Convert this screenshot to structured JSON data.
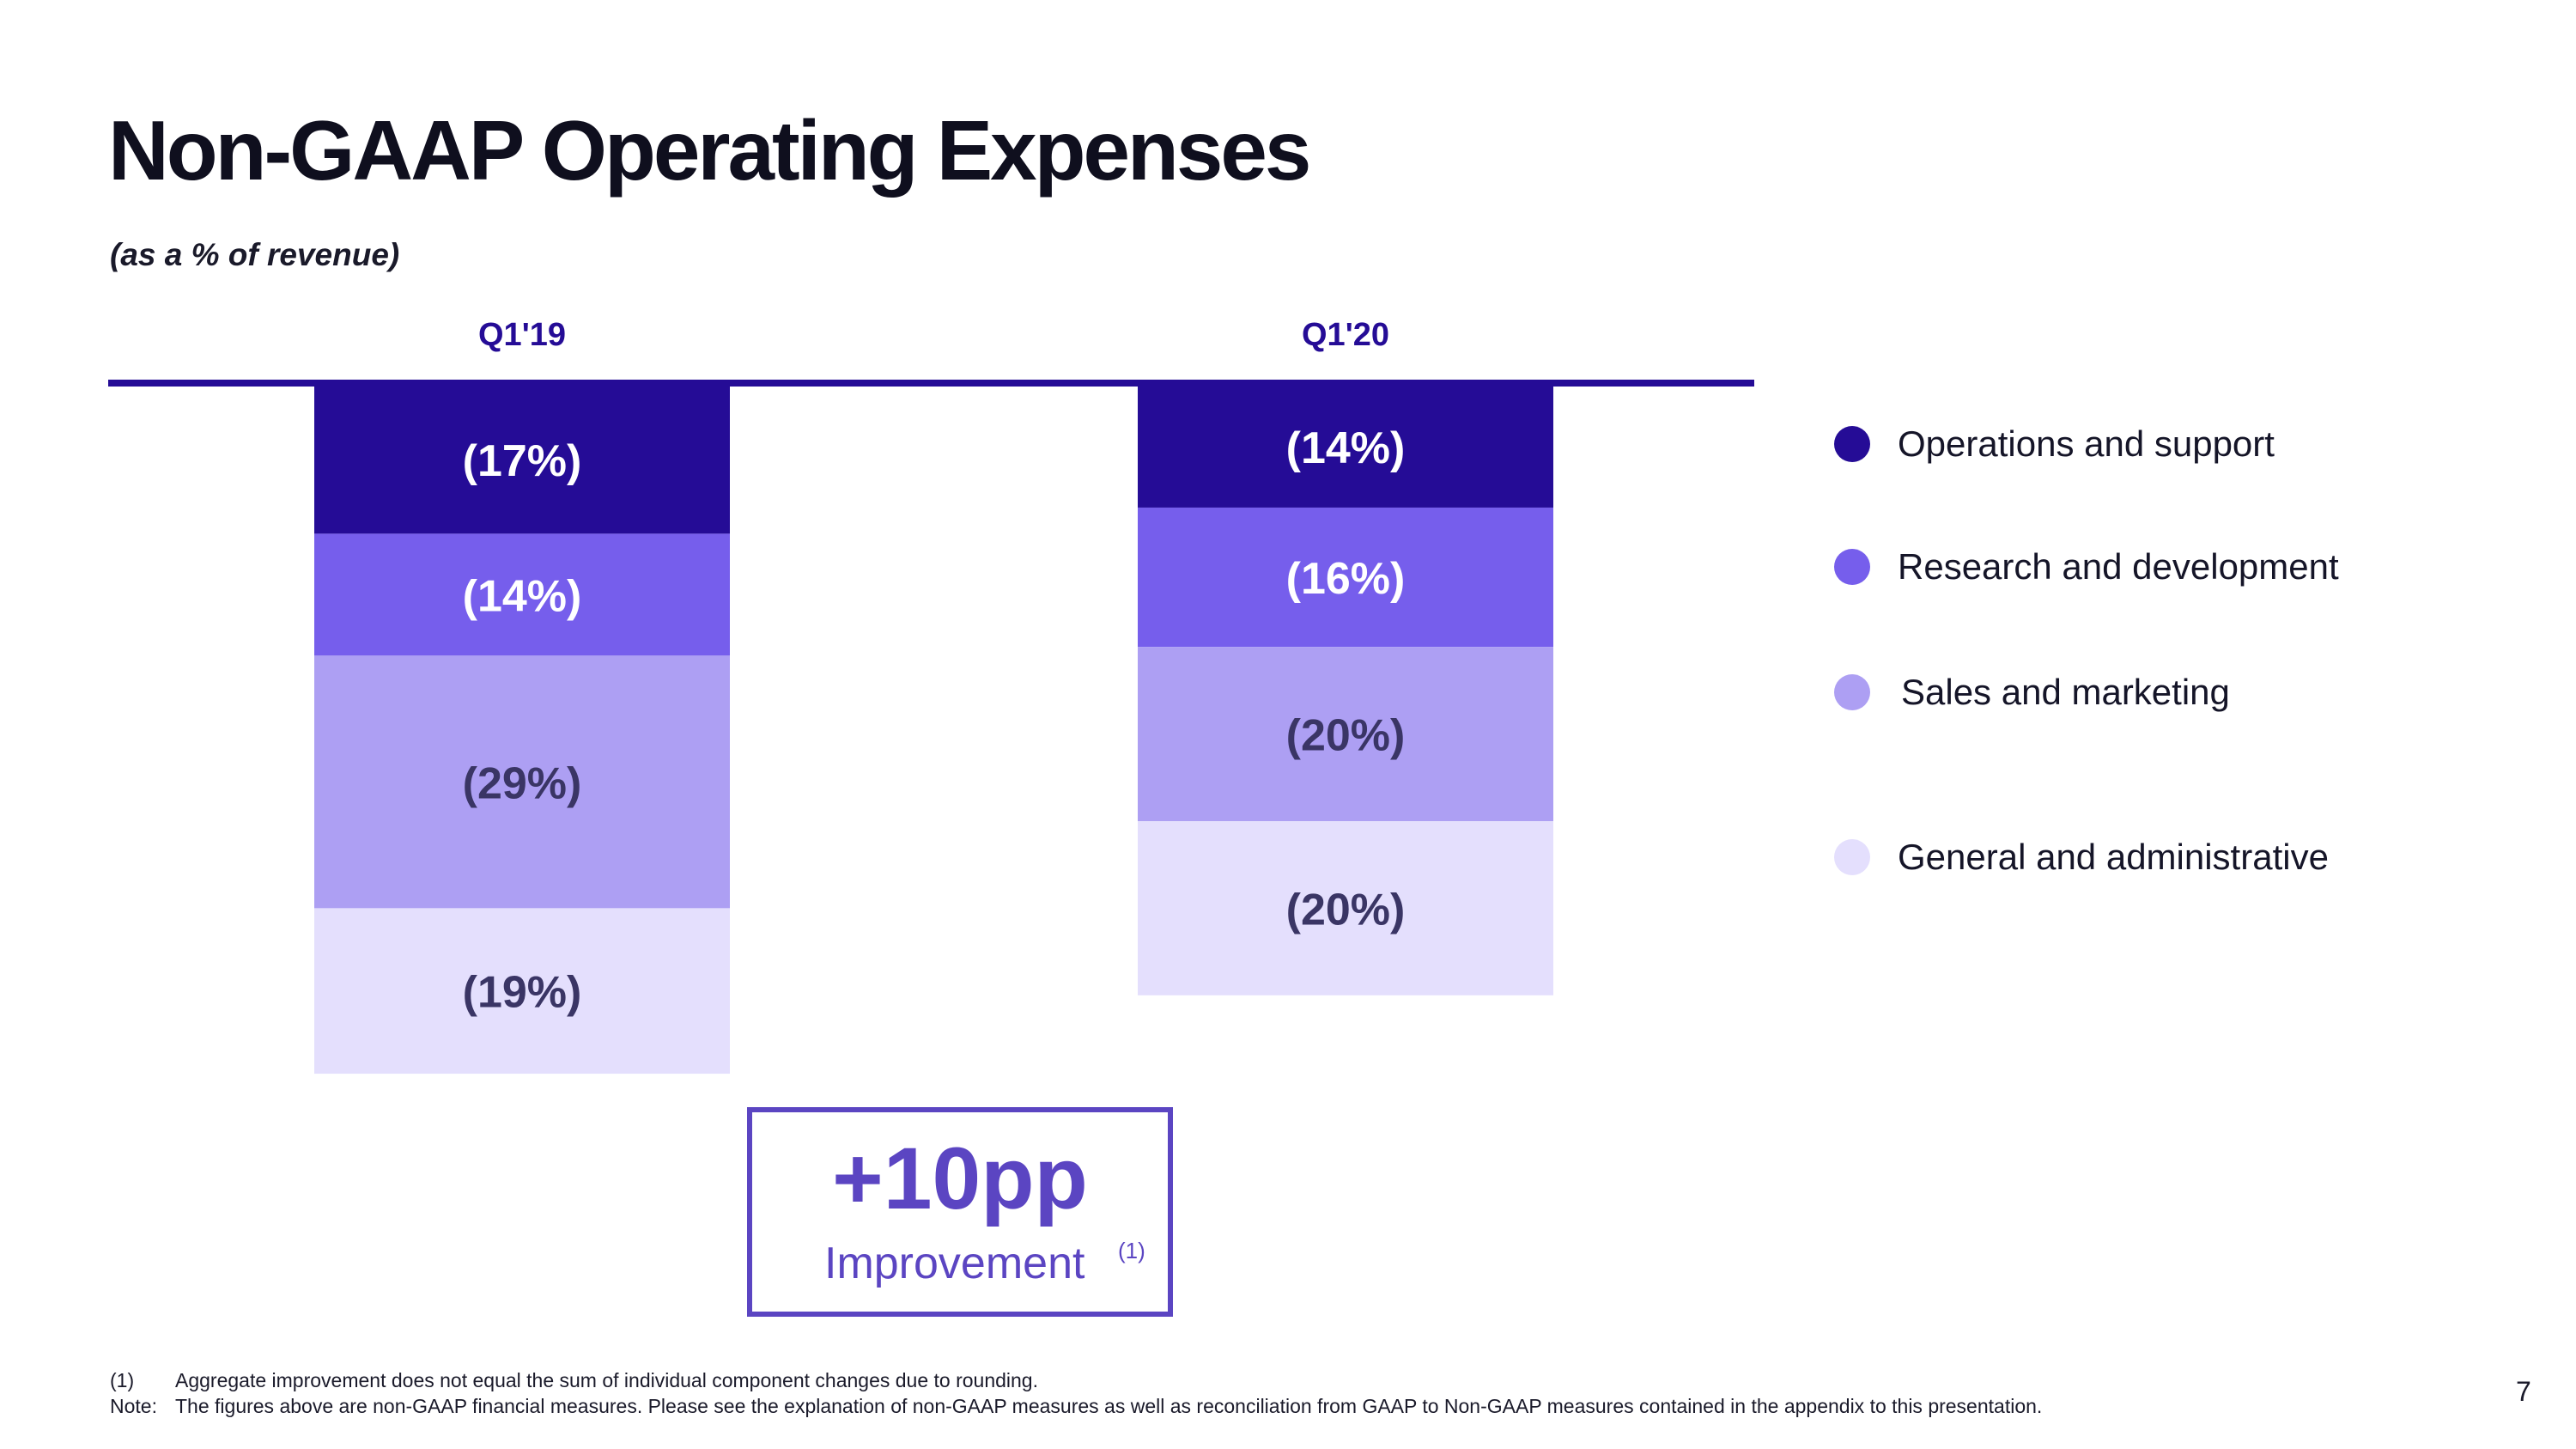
{
  "slide": {
    "title": "Non-GAAP Operating Expenses",
    "subtitle": "(as a % of revenue)",
    "page_number": "7"
  },
  "chart_data": {
    "type": "bar",
    "stacked": true,
    "orientation": "downward",
    "title": "Non-GAAP Operating Expenses",
    "ylabel": "(as a % of revenue)",
    "categories": [
      "Q1'19",
      "Q1'20"
    ],
    "series": [
      {
        "name": "Operations and support",
        "values": [
          -17,
          -14
        ],
        "labels": [
          "(17%)",
          "(14%)"
        ],
        "color": "#250c96"
      },
      {
        "name": "Research and development",
        "values": [
          -14,
          -16
        ],
        "labels": [
          "(14%)",
          "(16%)"
        ],
        "color": "#765eec"
      },
      {
        "name": "Sales and marketing",
        "values": [
          -29,
          -20
        ],
        "labels": [
          "(29%)",
          "(20%)"
        ],
        "color": "#ad9ff3"
      },
      {
        "name": "General and administrative",
        "values": [
          -19,
          -20
        ],
        "labels": [
          "(19%)",
          "(20%)"
        ],
        "color": "#e4dffd"
      }
    ],
    "label_colors": {
      "dark": "#ffffff",
      "light": "#3a3565"
    },
    "baseline_color": "#250c96",
    "category_label_color": "#250c96",
    "legend_position": "right"
  },
  "callout": {
    "value": "+10pp",
    "label": "Improvement",
    "superscript": "(1)",
    "color": "#5b45c2"
  },
  "footnotes": {
    "fn1_marker": "(1)",
    "fn1_text": "Aggregate improvement does not equal the sum of individual component changes due to rounding.",
    "note_label": "Note:",
    "note_text": "The figures above are non-GAAP financial measures.  Please see the explanation of non-GAAP measures as well as reconciliation from GAAP to Non-GAAP measures contained in the appendix to this presentation."
  }
}
